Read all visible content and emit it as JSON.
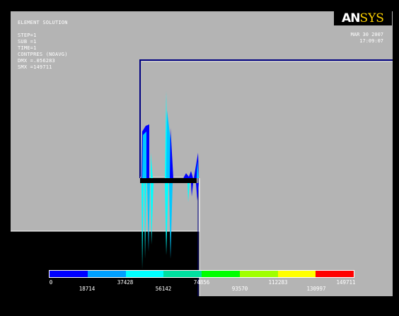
{
  "plot_info": {
    "line1": "ELEMENT SOLUTION",
    "line2": "STEP=1",
    "line3": "SUB =1",
    "line4": "TIME=1",
    "line5": "CONTPRES (NOAVG)",
    "line6": "DMX =.056283",
    "line7": "SMX =149711"
  },
  "timestamp": {
    "date": "MAR 30 2007",
    "time": "17:09:07"
  },
  "logo": {
    "an": "AN",
    "sys": "SYS"
  },
  "legend": {
    "colors": [
      "#0000ff",
      "#00a0ff",
      "#00ffff",
      "#00e0a0",
      "#00ff00",
      "#a0ff00",
      "#ffff00",
      "#ff0000"
    ],
    "labels_top": [
      "0",
      "37428",
      "74856",
      "112283",
      "149711"
    ],
    "labels_bottom": [
      "18714",
      "56142",
      "93570",
      "130997"
    ]
  },
  "colors": {
    "background": "#b4b4b4",
    "outline": "#000080",
    "body_fill": "#000000"
  }
}
